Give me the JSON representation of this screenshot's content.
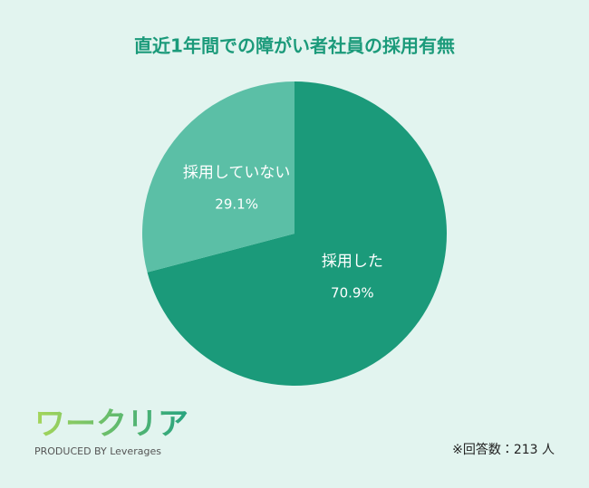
{
  "chart_data": {
    "type": "pie",
    "title": "直近1年間での障がい者社員の採用有無",
    "categories": [
      "採用した",
      "採用していない"
    ],
    "values": [
      70.9,
      29.1
    ],
    "value_labels": [
      "70.9%",
      "29.1%"
    ],
    "colors": [
      "#1b9a7a",
      "#5bbfa6"
    ],
    "note": "※回答数：213 人"
  },
  "logo": {
    "name": "ワークリア",
    "credit": "PRODUCED BY Leverages"
  }
}
